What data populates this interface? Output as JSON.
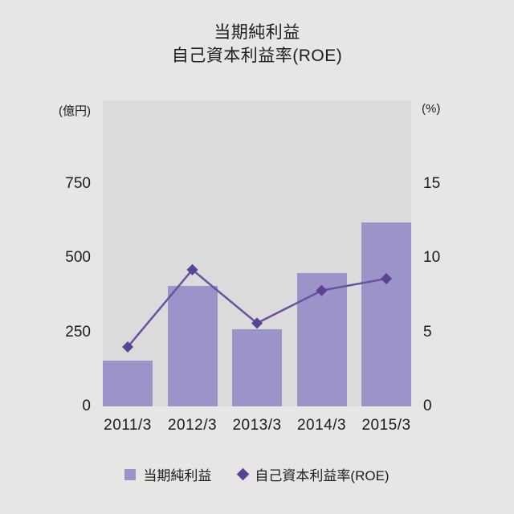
{
  "title": {
    "line1": "当期純利益",
    "line2": "自己資本利益率(ROE)"
  },
  "chart_data": {
    "type": "bar+line",
    "title": "当期純利益 / 自己資本利益率(ROE)",
    "categories": [
      "2011/3",
      "2012/3",
      "2013/3",
      "2014/3",
      "2015/3"
    ],
    "series": [
      {
        "name": "当期純利益",
        "type": "bar",
        "axis": "left",
        "unit": "億円",
        "values": [
          155,
          405,
          260,
          450,
          620
        ],
        "color": "#9a94c9"
      },
      {
        "name": "自己資本利益率(ROE)",
        "type": "line",
        "axis": "right",
        "unit": "%",
        "values": [
          4.0,
          9.2,
          5.6,
          7.8,
          8.6
        ],
        "line_color": "#6a51a3",
        "marker": "diamond",
        "marker_color": "#5d4195"
      }
    ],
    "left_axis": {
      "unit_label": "(億円)",
      "ticks": [
        750,
        500,
        250,
        0
      ],
      "range": [
        0,
        1030
      ]
    },
    "right_axis": {
      "unit_label": "(%)",
      "ticks": [
        15,
        10,
        5,
        0
      ],
      "range": [
        0,
        20.6
      ]
    },
    "grid": "off",
    "legend_position": "bottom",
    "plot_bg": "#dbdbdb",
    "page_bg": "#e7e6e4",
    "text_color": "#1c1c1c"
  }
}
